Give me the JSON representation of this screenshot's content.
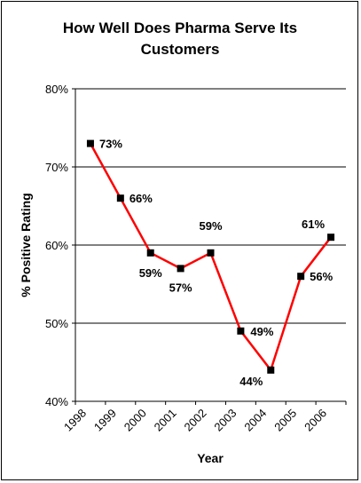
{
  "chart_data": {
    "type": "line",
    "title_lines": [
      "How Well Does Pharma Serve Its",
      "Customers"
    ],
    "xlabel": "Year",
    "ylabel": "% Positive Rating",
    "categories": [
      "1998",
      "1999",
      "2000",
      "2001",
      "2002",
      "2003",
      "2004",
      "2005",
      "2006"
    ],
    "series": [
      {
        "values": [
          73,
          66,
          59,
          57,
          59,
          49,
          44,
          56,
          61
        ]
      }
    ],
    "data_labels": [
      "73%",
      "66%",
      "59%",
      "57%",
      "59%",
      "49%",
      "44%",
      "56%",
      "61%"
    ],
    "y_ticks": [
      "40%",
      "50%",
      "60%",
      "70%",
      "80%"
    ],
    "ylim": [
      40,
      80
    ],
    "grid": true,
    "legend": "none",
    "line_color": "#ff0000",
    "marker_color": "#000000"
  }
}
